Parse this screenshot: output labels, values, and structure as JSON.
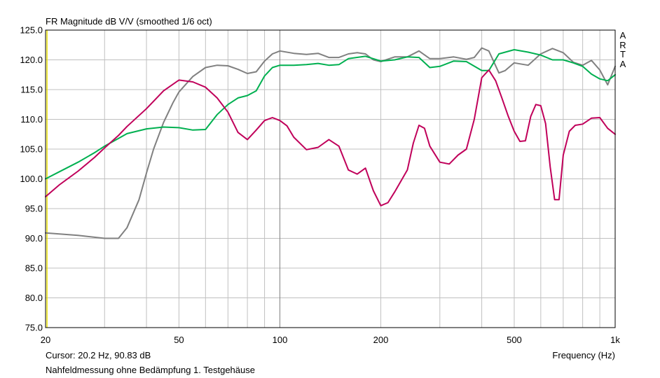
{
  "window": {
    "cursor_text": "Cursor: 20.2 Hz, 90.83 dB",
    "caption": "Nahfeldmessung ohne Bedämpfung 1. Testgehäuse",
    "brand_letters": [
      "A",
      "R",
      "T",
      "A"
    ]
  },
  "chart_data": {
    "type": "line",
    "title": "FR Magnitude dB V/V (smoothed 1/6 oct)",
    "xlabel": "Frequency (Hz)",
    "ylabel": "",
    "xscale": "log",
    "xlim": [
      20,
      1000
    ],
    "ylim": [
      75,
      125
    ],
    "grid": true,
    "background": "#ffffff",
    "grid_color": "#c0c0c0",
    "y_ticks": [
      {
        "value": 125,
        "label": "125.0"
      },
      {
        "value": 120,
        "label": "120.0"
      },
      {
        "value": 115,
        "label": "115.0"
      },
      {
        "value": 110,
        "label": "110.0"
      },
      {
        "value": 105,
        "label": "105.0"
      },
      {
        "value": 100,
        "label": "100.0"
      },
      {
        "value": 95,
        "label": "95.0"
      },
      {
        "value": 90,
        "label": "90.0"
      },
      {
        "value": 85,
        "label": "85.0"
      },
      {
        "value": 80,
        "label": "80.0"
      },
      {
        "value": 75,
        "label": "75.0"
      }
    ],
    "x_ticks": [
      {
        "value": 20,
        "label": "20"
      },
      {
        "value": 50,
        "label": "50"
      },
      {
        "value": 100,
        "label": "100"
      },
      {
        "value": 200,
        "label": "200"
      },
      {
        "value": 500,
        "label": "500"
      },
      {
        "value": 1000,
        "label": "1k"
      }
    ],
    "x_gridlines": [
      20,
      30,
      40,
      50,
      60,
      70,
      80,
      90,
      100,
      200,
      300,
      400,
      500,
      600,
      700,
      800,
      900,
      1000
    ],
    "x_major_gridlines": [
      100
    ],
    "cursor_x": 20.2,
    "cursor_color": "#e8e000",
    "series": [
      {
        "color": "#808080",
        "x": [
          20,
          25,
          30,
          33,
          35,
          38,
          40,
          42,
          45,
          48,
          50,
          55,
          60,
          65,
          70,
          75,
          80,
          85,
          90,
          95,
          100,
          110,
          120,
          130,
          140,
          150,
          160,
          170,
          180,
          190,
          200,
          220,
          240,
          260,
          280,
          300,
          330,
          360,
          380,
          400,
          420,
          450,
          470,
          500,
          550,
          600,
          650,
          700,
          750,
          800,
          850,
          900,
          950,
          1000
        ],
        "y": [
          90.9,
          90.5,
          90.0,
          90.0,
          91.8,
          96.5,
          101.0,
          105.0,
          109.5,
          112.8,
          114.6,
          117.2,
          118.7,
          119.1,
          119.0,
          118.4,
          117.7,
          118.0,
          119.8,
          121.0,
          121.5,
          121.1,
          120.9,
          121.1,
          120.4,
          120.4,
          121.0,
          121.2,
          121.0,
          120.0,
          119.7,
          120.5,
          120.5,
          121.5,
          120.2,
          120.2,
          120.5,
          120.1,
          120.4,
          122.0,
          121.5,
          117.8,
          118.2,
          119.5,
          119.1,
          121.0,
          121.9,
          121.2,
          119.6,
          119.1,
          119.9,
          118.3,
          115.8,
          118.9
        ]
      },
      {
        "color": "#00b050",
        "x": [
          20,
          22,
          25,
          28,
          30,
          33,
          35,
          40,
          45,
          50,
          55,
          60,
          65,
          70,
          75,
          80,
          85,
          90,
          95,
          100,
          110,
          120,
          130,
          140,
          150,
          160,
          180,
          200,
          220,
          240,
          260,
          280,
          300,
          330,
          360,
          400,
          420,
          450,
          500,
          550,
          600,
          650,
          700,
          750,
          800,
          850,
          900,
          950,
          1000
        ],
        "y": [
          100.0,
          101.2,
          102.8,
          104.4,
          105.5,
          106.8,
          107.6,
          108.4,
          108.7,
          108.6,
          108.2,
          108.3,
          110.8,
          112.5,
          113.6,
          114.0,
          114.8,
          117.3,
          118.7,
          119.1,
          119.1,
          119.2,
          119.4,
          119.1,
          119.2,
          120.2,
          120.6,
          119.8,
          120.0,
          120.5,
          120.4,
          118.7,
          118.9,
          119.8,
          119.7,
          118.2,
          118.2,
          121.0,
          121.7,
          121.3,
          120.8,
          120.0,
          120.0,
          119.5,
          118.9,
          117.6,
          116.8,
          116.5,
          117.5
        ]
      },
      {
        "color": "#c0005a",
        "x": [
          20,
          22,
          25,
          28,
          30,
          33,
          35,
          40,
          45,
          50,
          55,
          60,
          65,
          70,
          75,
          80,
          85,
          90,
          95,
          100,
          105,
          110,
          120,
          130,
          140,
          150,
          160,
          170,
          180,
          190,
          200,
          210,
          220,
          240,
          250,
          260,
          270,
          280,
          300,
          320,
          340,
          360,
          380,
          400,
          420,
          440,
          460,
          480,
          500,
          520,
          540,
          560,
          580,
          600,
          620,
          640,
          660,
          680,
          700,
          730,
          760,
          800,
          850,
          900,
          950,
          1000
        ],
        "y": [
          97.0,
          99.0,
          101.3,
          103.6,
          105.2,
          107.3,
          108.8,
          111.8,
          114.8,
          116.6,
          116.3,
          115.4,
          113.6,
          111.2,
          107.8,
          106.6,
          108.2,
          109.8,
          110.3,
          109.8,
          108.9,
          107.0,
          104.9,
          105.3,
          106.6,
          105.5,
          101.5,
          100.8,
          101.8,
          98.0,
          95.5,
          96.0,
          97.8,
          101.5,
          106.0,
          109.0,
          108.5,
          105.5,
          102.8,
          102.5,
          104.0,
          105.0,
          110.0,
          117.0,
          118.3,
          116.5,
          113.5,
          110.5,
          108.0,
          106.3,
          106.4,
          110.5,
          112.5,
          112.3,
          109.3,
          102.0,
          96.5,
          96.5,
          104.0,
          108.0,
          109.0,
          109.2,
          110.2,
          110.3,
          108.5,
          107.5
        ]
      }
    ]
  }
}
